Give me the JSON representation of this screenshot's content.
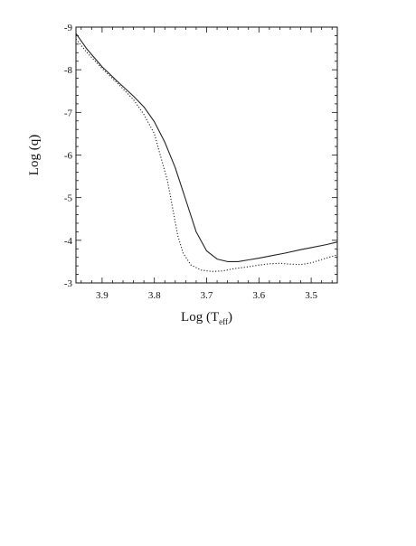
{
  "chart_data": {
    "type": "line",
    "title": "",
    "xlabel_main": "Log (T",
    "xlabel_sub": "eff",
    "xlabel_close": ")",
    "ylabel": "Log (q)",
    "xlim": [
      3.95,
      3.45
    ],
    "ylim": [
      -9,
      -3
    ],
    "x_ticks": [
      3.9,
      3.8,
      3.7,
      3.6,
      3.5
    ],
    "x_tick_labels": [
      "3.9",
      "3.8",
      "3.7",
      "3.6",
      "3.5"
    ],
    "y_ticks": [
      -9,
      -8,
      -7,
      -6,
      -5,
      -4,
      -3
    ],
    "y_tick_labels": [
      "-9",
      "-8",
      "-7",
      "-6",
      "-5",
      "-4",
      "-3"
    ],
    "grid": false,
    "series": [
      {
        "style": "solid",
        "color": "#222222",
        "points": [
          [
            3.95,
            -8.85
          ],
          [
            3.93,
            -8.5
          ],
          [
            3.9,
            -8.07
          ],
          [
            3.87,
            -7.72
          ],
          [
            3.84,
            -7.38
          ],
          [
            3.82,
            -7.13
          ],
          [
            3.8,
            -6.78
          ],
          [
            3.78,
            -6.3
          ],
          [
            3.76,
            -5.7
          ],
          [
            3.74,
            -4.95
          ],
          [
            3.72,
            -4.2
          ],
          [
            3.7,
            -3.75
          ],
          [
            3.68,
            -3.56
          ],
          [
            3.66,
            -3.5
          ],
          [
            3.64,
            -3.5
          ],
          [
            3.62,
            -3.54
          ],
          [
            3.6,
            -3.58
          ],
          [
            3.58,
            -3.63
          ],
          [
            3.55,
            -3.7
          ],
          [
            3.52,
            -3.78
          ],
          [
            3.5,
            -3.83
          ],
          [
            3.47,
            -3.9
          ],
          [
            3.45,
            -3.96
          ]
        ]
      },
      {
        "style": "dotted",
        "color": "#222222",
        "points": [
          [
            3.95,
            -8.72
          ],
          [
            3.93,
            -8.42
          ],
          [
            3.9,
            -8.03
          ],
          [
            3.87,
            -7.68
          ],
          [
            3.84,
            -7.3
          ],
          [
            3.82,
            -6.95
          ],
          [
            3.8,
            -6.5
          ],
          [
            3.79,
            -6.05
          ],
          [
            3.775,
            -5.4
          ],
          [
            3.765,
            -4.75
          ],
          [
            3.755,
            -4.1
          ],
          [
            3.745,
            -3.7
          ],
          [
            3.73,
            -3.42
          ],
          [
            3.71,
            -3.3
          ],
          [
            3.69,
            -3.27
          ],
          [
            3.67,
            -3.28
          ],
          [
            3.65,
            -3.33
          ],
          [
            3.62,
            -3.38
          ],
          [
            3.6,
            -3.42
          ],
          [
            3.58,
            -3.45
          ],
          [
            3.56,
            -3.46
          ],
          [
            3.54,
            -3.44
          ],
          [
            3.52,
            -3.43
          ],
          [
            3.5,
            -3.47
          ],
          [
            3.48,
            -3.55
          ],
          [
            3.45,
            -3.66
          ]
        ]
      }
    ]
  }
}
